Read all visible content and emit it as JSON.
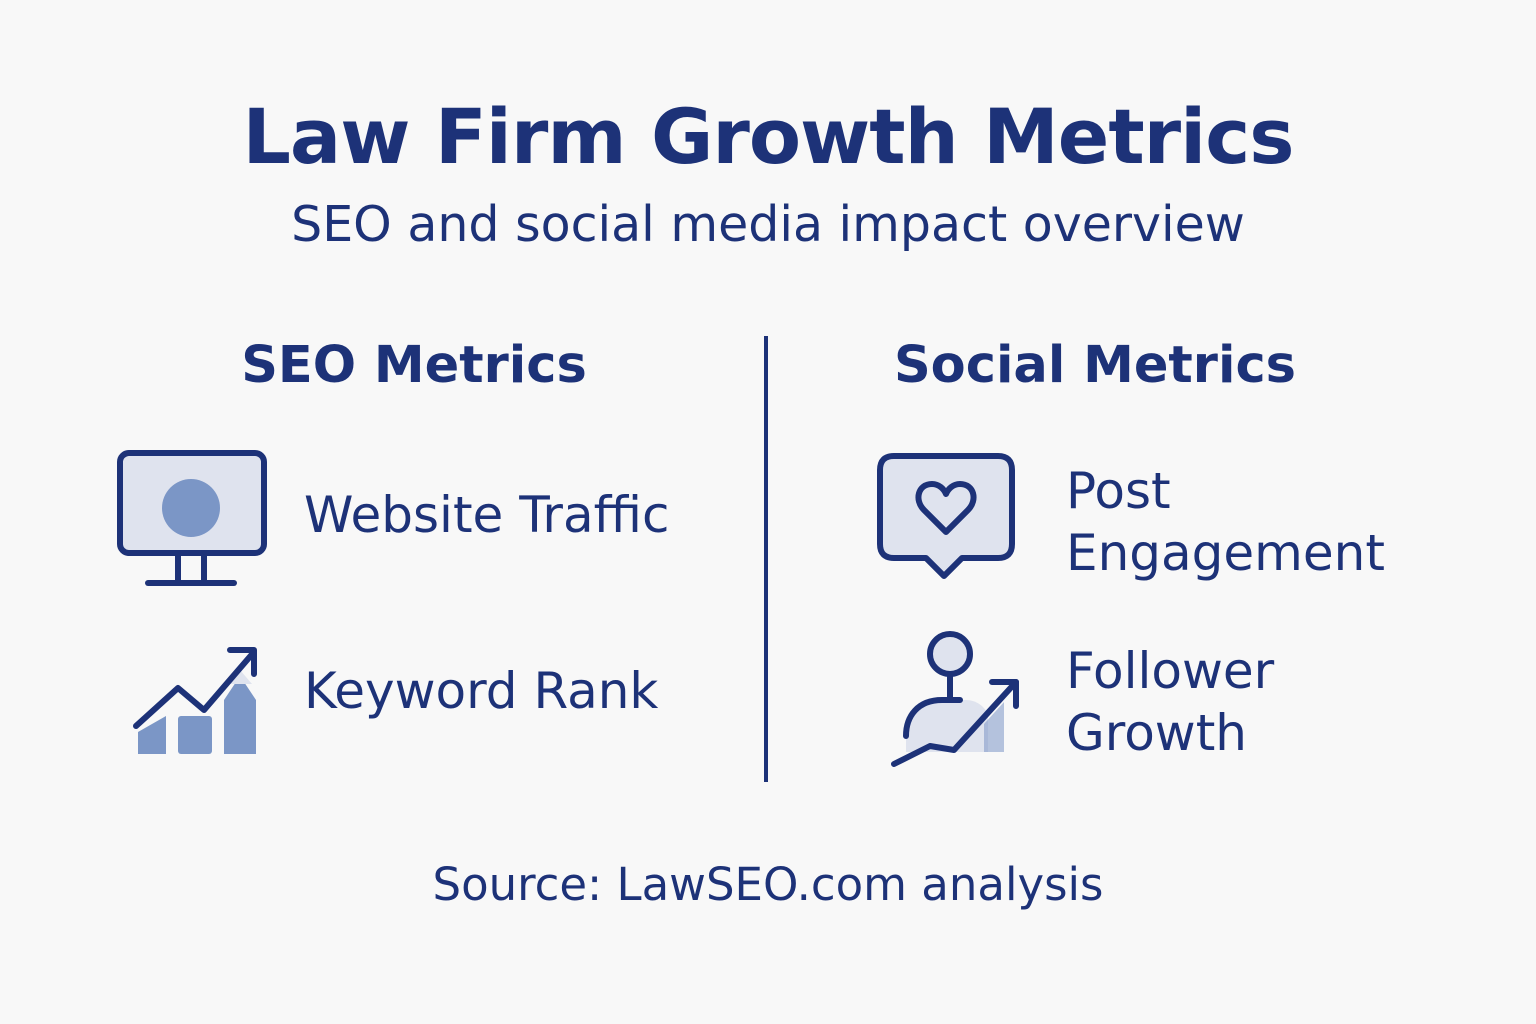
{
  "header": {
    "title": "Law Firm Growth Metrics",
    "subtitle": "SEO and social media impact overview"
  },
  "seo": {
    "heading": "SEO Metrics",
    "items": [
      {
        "label": "Website Traffic",
        "icon": "monitor-icon"
      },
      {
        "label": "Keyword Rank",
        "icon": "trending-bar-chart-icon"
      }
    ]
  },
  "social": {
    "heading": "Social Metrics",
    "items": [
      {
        "label_line1": "Post",
        "label_line2": "Engagement",
        "icon": "heart-chat-bubble-icon"
      },
      {
        "label_line1": "Follower",
        "label_line2": "Growth",
        "icon": "person-growth-icon"
      }
    ]
  },
  "footer": {
    "source": "Source: LawSEO.com analysis"
  },
  "colors": {
    "primary": "#1d3278",
    "accent_fill": "#7b96c6",
    "light_fill": "#dfe3ee",
    "background": "#f8f8f8"
  }
}
